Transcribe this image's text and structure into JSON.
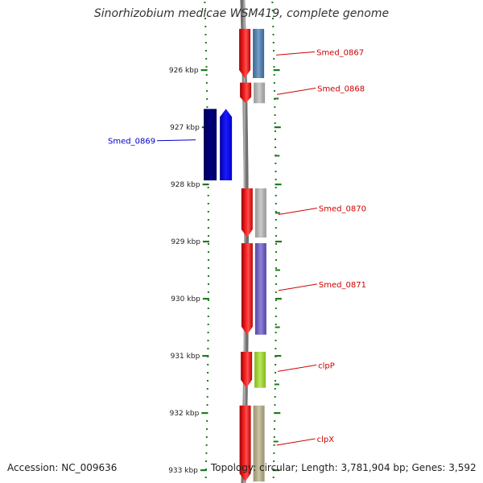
{
  "header": {
    "title": "Sinorhizobium medicae WSM419, complete genome"
  },
  "footer": {
    "accession": "Accession: NC_009636",
    "topology": "Topology: circular; Length: 3,781,904 bp; Genes: 3,592"
  },
  "colors": {
    "ruler": "#1e7b1e",
    "backbone": "#8a8a8a",
    "forward_label": "#cc0000",
    "reverse_label": "#0000cc"
  },
  "scale": {
    "ticks": [
      {
        "kbp": 926,
        "label": "926 kbp"
      },
      {
        "kbp": 927,
        "label": "927 kbp"
      },
      {
        "kbp": 928,
        "label": "928 kbp"
      },
      {
        "kbp": 929,
        "label": "929 kbp"
      },
      {
        "kbp": 930,
        "label": "930 kbp"
      },
      {
        "kbp": 931,
        "label": "931 kbp"
      },
      {
        "kbp": 932,
        "label": "932 kbp"
      },
      {
        "kbp": 933,
        "label": "933 kbp"
      }
    ]
  },
  "genes": [
    {
      "name": "Smed_0867",
      "strand": "+",
      "start_kbp": 925.28,
      "end_kbp": 926.14,
      "cog_color": "#4a7fb8"
    },
    {
      "name": "Smed_0868",
      "strand": "+",
      "start_kbp": 926.22,
      "end_kbp": 926.58,
      "cog_color": "#bcbcbc"
    },
    {
      "name": "Smed_0869",
      "strand": "-",
      "start_kbp": 926.68,
      "end_kbp": 927.93,
      "cog_color": "#0000ff"
    },
    {
      "name": "Smed_0870",
      "strand": "+",
      "start_kbp": 928.07,
      "end_kbp": 928.93,
      "cog_color": "#bcbcbc"
    },
    {
      "name": "Smed_0871",
      "strand": "+",
      "start_kbp": 929.03,
      "end_kbp": 930.63,
      "cog_color": "#6a5acd"
    },
    {
      "name": "clpP",
      "strand": "+",
      "start_kbp": 930.93,
      "end_kbp": 931.56,
      "cog_color": "#a6e32a"
    },
    {
      "name": "clpX",
      "strand": "+",
      "start_kbp": 931.87,
      "end_kbp": 933.2,
      "cog_color": "#bdb58a"
    }
  ]
}
